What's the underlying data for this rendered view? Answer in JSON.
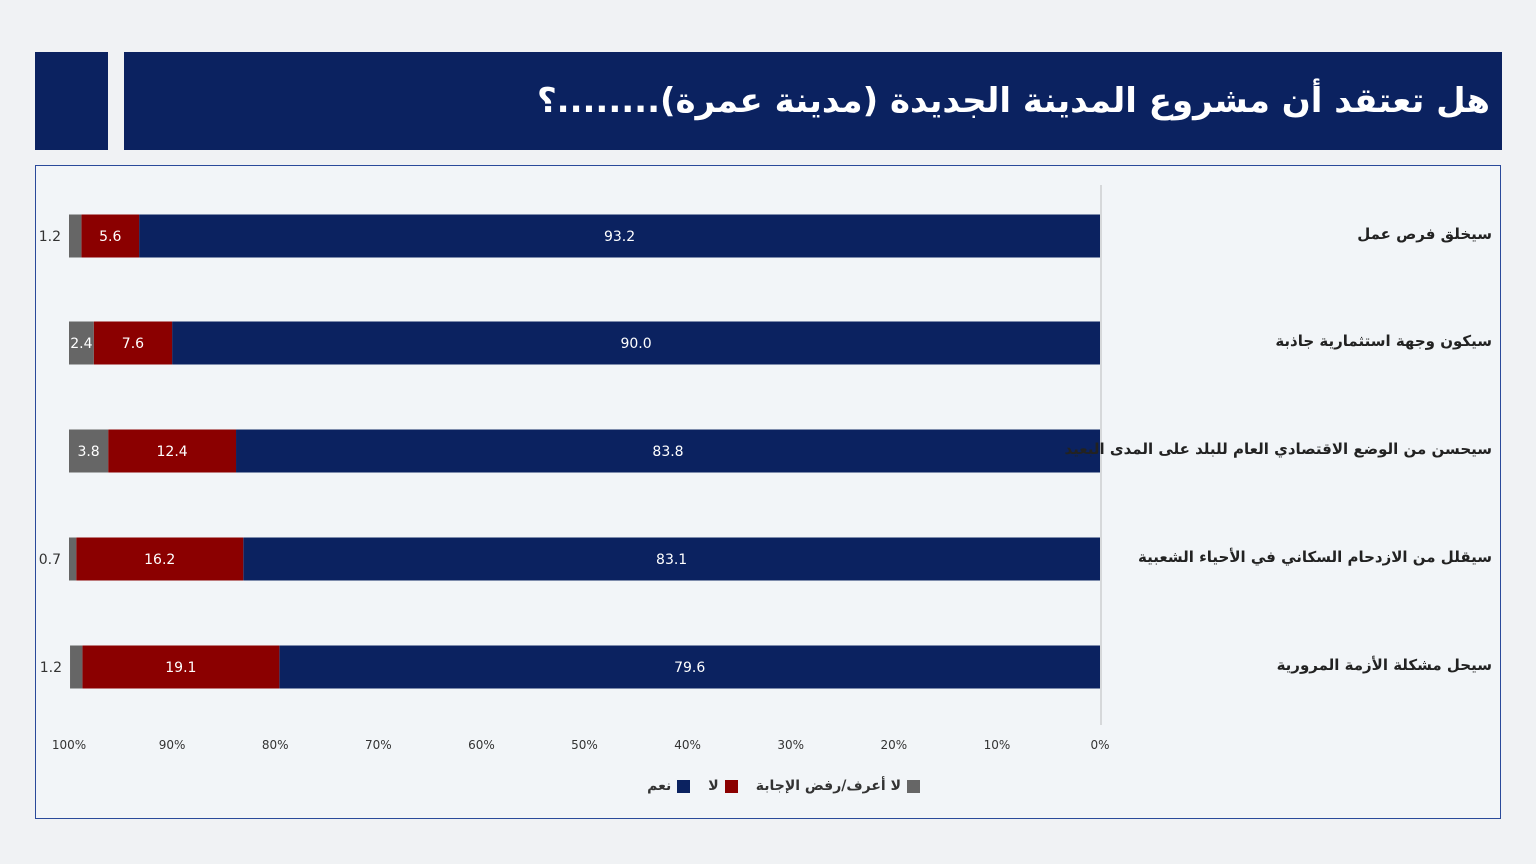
{
  "title": "هل تعتقد أن مشروع المدينة الجديدة (مدينة عمرة)........؟",
  "chart_data": {
    "type": "bar",
    "orientation": "horizontal-stacked",
    "x_axis_reversed": true,
    "xlim": [
      0,
      100
    ],
    "ticks": [
      "100%",
      "90%",
      "80%",
      "70%",
      "60%",
      "50%",
      "40%",
      "30%",
      "20%",
      "10%",
      "0%"
    ],
    "categories": [
      "سيخلق فرص عمل",
      "سيكون وجهة استثمارية جاذبة",
      "سيحسن من الوضع الاقتصادي العام للبلد على المدى البعيد",
      "سيقلل من الازدحام السكاني في الأحياء الشعبية",
      "سيحل مشكلة الأزمة المرورية"
    ],
    "series": [
      {
        "name": "نعم",
        "color": "#0b2260",
        "values": [
          93.2,
          90.0,
          83.8,
          83.1,
          79.6
        ],
        "labels": [
          "93.2",
          "90.0",
          "83.8",
          "83.1",
          "79.6"
        ]
      },
      {
        "name": "لا",
        "color": "#8b0000",
        "values": [
          5.6,
          7.6,
          12.4,
          16.2,
          19.1
        ],
        "labels": [
          "5.6",
          "7.6",
          "12.4",
          "16.2",
          "19.1"
        ]
      },
      {
        "name": "لا أعرف/رفض الإجابة",
        "color": "#666666",
        "values": [
          1.2,
          2.4,
          3.8,
          0.7,
          1.2
        ],
        "labels": [
          "1.2",
          "2.4",
          "3.8",
          "0.7",
          "1.2"
        ]
      }
    ],
    "legend": "bottom",
    "grid": false
  }
}
